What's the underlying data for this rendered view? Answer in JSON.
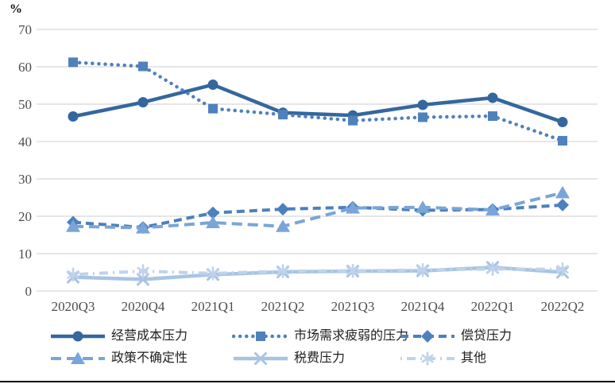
{
  "chart_data": {
    "type": "line",
    "title": "",
    "unit_label": "%",
    "xlabel": "",
    "ylabel": "%",
    "ylim": [
      0,
      70
    ],
    "yticks": [
      0,
      10,
      20,
      30,
      40,
      50,
      60,
      70
    ],
    "grid": "horizontal",
    "legend_position": "bottom",
    "categories": [
      "2020Q3",
      "2020Q4",
      "2021Q1",
      "2021Q2",
      "2021Q3",
      "2021Q4",
      "2022Q1",
      "2022Q2"
    ],
    "series": [
      {
        "name": "经营成本压力",
        "marker": "circle",
        "line": "solid",
        "color": "#34679E",
        "values": [
          46.7,
          50.5,
          55.2,
          47.7,
          47.0,
          49.8,
          51.7,
          45.2
        ]
      },
      {
        "name": "市场需求疲弱的压力",
        "marker": "square",
        "line": "dotted",
        "color": "#4F81BD",
        "values": [
          61.2,
          60.1,
          48.8,
          47.2,
          45.6,
          46.5,
          46.8,
          40.2
        ]
      },
      {
        "name": "偿贷压力",
        "marker": "diamond",
        "line": "dashed",
        "color": "#4C80BE",
        "values": [
          18.4,
          17.0,
          20.9,
          21.9,
          22.4,
          21.6,
          21.8,
          23.0
        ]
      },
      {
        "name": "政策不确定性",
        "marker": "triangle",
        "line": "long-dash",
        "color": "#7AA5D8",
        "values": [
          17.3,
          16.9,
          18.3,
          17.3,
          22.2,
          22.4,
          21.7,
          26.3
        ]
      },
      {
        "name": "税费压力",
        "marker": "x",
        "line": "solid",
        "color": "#A8C4E5",
        "values": [
          3.7,
          3.1,
          4.4,
          5.1,
          5.3,
          5.4,
          6.3,
          5.0
        ]
      },
      {
        "name": "其他",
        "marker": "asterisk",
        "line": "dash-dot",
        "color": "#BFD3EC",
        "values": [
          4.4,
          5.3,
          4.7,
          5.3,
          5.4,
          5.6,
          5.9,
          5.8
        ]
      }
    ]
  },
  "style": {
    "gridline_color": "#D6D6D6",
    "tick_label_color": "#4D4D4D",
    "legend_text_color": "#1F1F1F"
  }
}
